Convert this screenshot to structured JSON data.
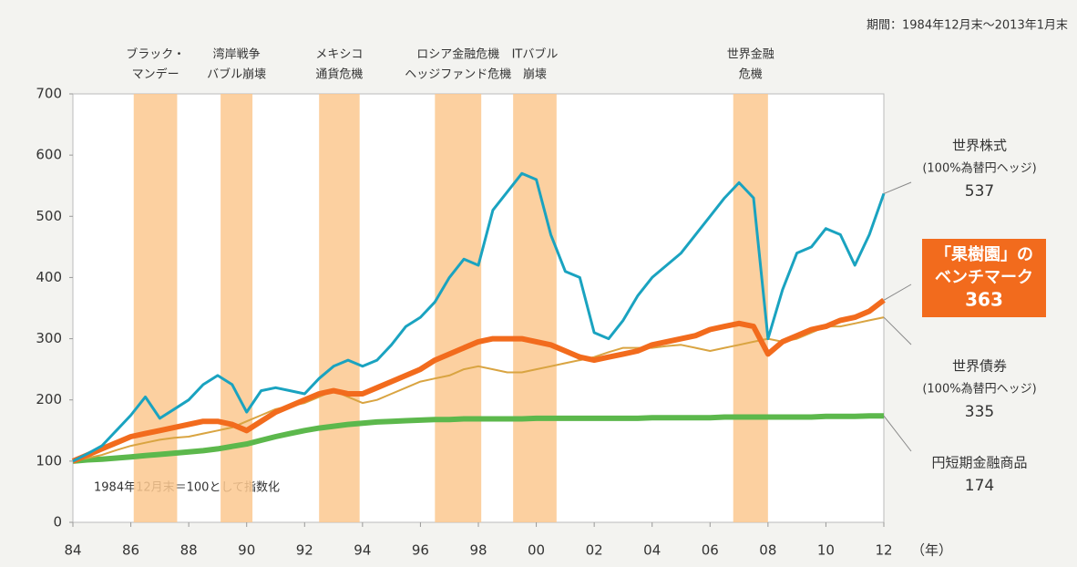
{
  "chart_data": {
    "type": "line",
    "period_note": "期間：1984年12月末〜2013年1月末",
    "index_note": "1984年12月末＝100として指数化",
    "x_label": "（年）",
    "xlim": [
      1984,
      2012
    ],
    "ylim": [
      0,
      700
    ],
    "yticks": [
      0,
      100,
      200,
      300,
      400,
      500,
      600,
      700
    ],
    "xticks": [
      {
        "value": 1984,
        "label": "84"
      },
      {
        "value": 1986,
        "label": "86"
      },
      {
        "value": 1988,
        "label": "88"
      },
      {
        "value": 1990,
        "label": "90"
      },
      {
        "value": 1992,
        "label": "92"
      },
      {
        "value": 1994,
        "label": "94"
      },
      {
        "value": 1996,
        "label": "96"
      },
      {
        "value": 1998,
        "label": "98"
      },
      {
        "value": 2000,
        "label": "00"
      },
      {
        "value": 2002,
        "label": "02"
      },
      {
        "value": 2004,
        "label": "04"
      },
      {
        "value": 2006,
        "label": "06"
      },
      {
        "value": 2008,
        "label": "08"
      },
      {
        "value": 2010,
        "label": "10"
      },
      {
        "value": 2012,
        "label": "12"
      }
    ],
    "grid": false,
    "shaded_periods": [
      {
        "start": 1986.1,
        "end": 1987.6,
        "label_lines": [
          "ブラック・",
          "マンデー"
        ]
      },
      {
        "start": 1989.1,
        "end": 1990.2,
        "label_lines": [
          "湾岸戦争",
          "バブル崩壊"
        ]
      },
      {
        "start": 1992.5,
        "end": 1993.9,
        "label_lines": [
          "メキシコ",
          "通貨危機"
        ]
      },
      {
        "start": 1996.5,
        "end": 1998.1,
        "label_lines": [
          "ロシア金融危機",
          "ヘッジファンド危機"
        ]
      },
      {
        "start": 1999.2,
        "end": 2000.7,
        "label_lines": [
          "ITバブル",
          "崩壊"
        ]
      },
      {
        "start": 2006.8,
        "end": 2008.0,
        "label_lines": [
          "世界金融",
          "危機"
        ]
      }
    ],
    "shade_color": "#fbc88f",
    "x": [
      1984,
      1984.5,
      1985,
      1985.5,
      1986,
      1986.5,
      1987,
      1987.5,
      1988,
      1988.5,
      1989,
      1989.5,
      1990,
      1990.5,
      1991,
      1991.5,
      1992,
      1992.5,
      1993,
      1993.5,
      1994,
      1994.5,
      1995,
      1995.5,
      1996,
      1996.5,
      1997,
      1997.5,
      1998,
      1998.5,
      1999,
      1999.5,
      2000,
      2000.5,
      2001,
      2001.5,
      2002,
      2002.5,
      2003,
      2003.5,
      2004,
      2004.5,
      2005,
      2005.5,
      2006,
      2006.5,
      2007,
      2007.5,
      2008,
      2008.5,
      2009,
      2009.5,
      2010,
      2010.5,
      2011,
      2011.5,
      2012
    ],
    "series": [
      {
        "name_lines": [
          "円短期金融商品"
        ],
        "color": "#5cb84c",
        "width": 6,
        "values": [
          100,
          102,
          103,
          105,
          107,
          109,
          111,
          113,
          115,
          117,
          120,
          124,
          128,
          134,
          140,
          145,
          150,
          154,
          157,
          160,
          162,
          164,
          165,
          166,
          167,
          168,
          168,
          169,
          169,
          169,
          169,
          169,
          170,
          170,
          170,
          170,
          170,
          170,
          170,
          170,
          171,
          171,
          171,
          171,
          171,
          172,
          172,
          172,
          172,
          172,
          172,
          172,
          173,
          173,
          173,
          174,
          174
        ]
      },
      {
        "name_lines": [
          "世界債券",
          "(100%為替円ヘッジ)"
        ],
        "color": "#d9a441",
        "width": 2,
        "values": [
          100,
          105,
          110,
          118,
          125,
          130,
          135,
          138,
          140,
          145,
          150,
          155,
          165,
          175,
          185,
          190,
          195,
          205,
          215,
          205,
          195,
          200,
          210,
          220,
          230,
          235,
          240,
          250,
          255,
          250,
          245,
          245,
          250,
          255,
          260,
          265,
          270,
          278,
          285,
          285,
          285,
          288,
          290,
          285,
          280,
          285,
          290,
          295,
          300,
          295,
          300,
          310,
          320,
          320,
          325,
          330,
          335
        ]
      },
      {
        "name_lines": [
          "「果樹園」の",
          "ベンチマーク"
        ],
        "color": "#f26b1d",
        "width": 6,
        "boxed": true,
        "values": [
          100,
          110,
          120,
          130,
          140,
          145,
          150,
          155,
          160,
          165,
          165,
          160,
          150,
          165,
          180,
          190,
          200,
          210,
          215,
          210,
          210,
          220,
          230,
          240,
          250,
          265,
          275,
          285,
          295,
          300,
          300,
          300,
          295,
          290,
          280,
          270,
          265,
          270,
          275,
          280,
          290,
          295,
          300,
          305,
          315,
          320,
          325,
          320,
          275,
          295,
          305,
          315,
          320,
          330,
          335,
          345,
          363
        ]
      },
      {
        "name_lines": [
          "世界株式",
          "(100%為替円ヘッジ)"
        ],
        "color": "#1aa3c0",
        "width": 3,
        "values": [
          100,
          112,
          125,
          150,
          175,
          205,
          170,
          185,
          200,
          225,
          240,
          225,
          180,
          215,
          220,
          215,
          210,
          235,
          255,
          265,
          255,
          265,
          290,
          320,
          335,
          360,
          400,
          430,
          420,
          510,
          540,
          570,
          560,
          470,
          410,
          400,
          310,
          300,
          330,
          370,
          400,
          420,
          440,
          470,
          500,
          530,
          555,
          530,
          300,
          380,
          440,
          450,
          480,
          470,
          420,
          470,
          537
        ]
      }
    ]
  }
}
